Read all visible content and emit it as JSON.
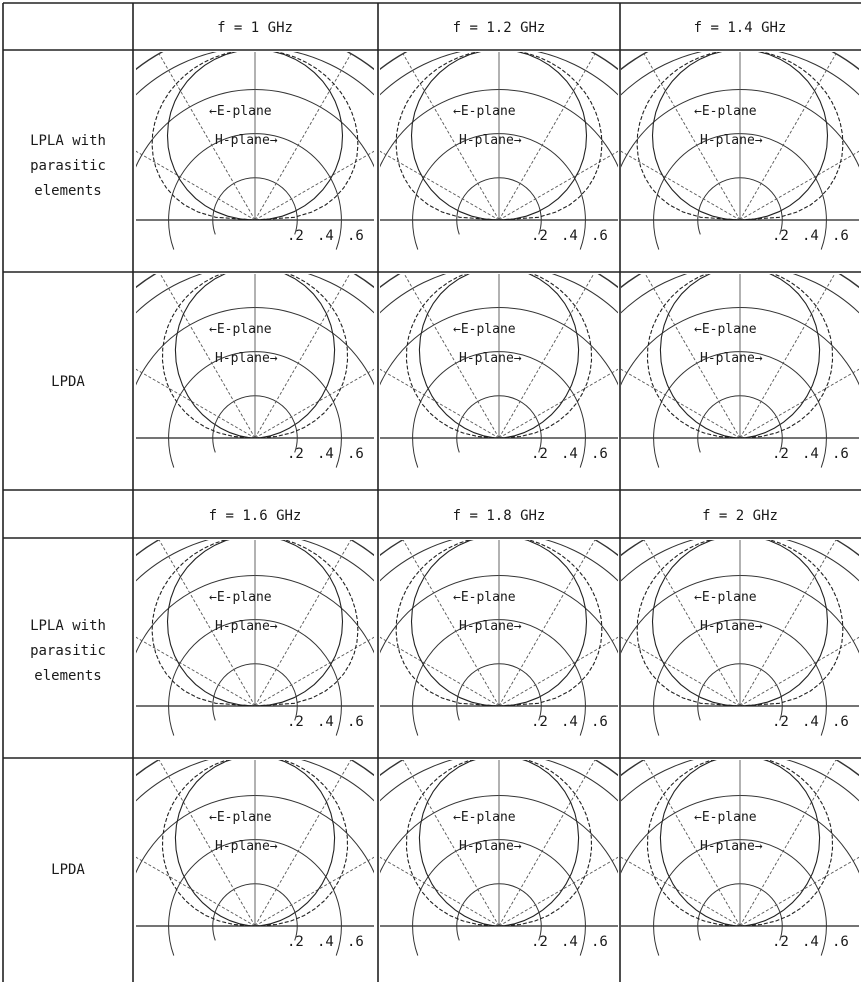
{
  "header_row_1": [
    "f = 1 GHz",
    "f = 1.2 GHz",
    "f = 1.4 GHz"
  ],
  "header_row_2": [
    "f = 1.6 GHz",
    "f = 1.8 GHz",
    "f = 2 GHz"
  ],
  "row_labels": {
    "lpla": [
      "LPLA with",
      "parasitic",
      "elements"
    ],
    "lpda": [
      "LPDA"
    ]
  },
  "plot_labels": {
    "e_plane": "E-plane",
    "h_plane": "H-plane"
  },
  "radial_ticks": [
    ".2",
    ".4",
    ".6"
  ],
  "chart_data": {
    "type": "polar",
    "description_of_grid": {
      "radial_ticks": [
        0.2,
        0.4,
        0.6
      ],
      "angular_span_deg": 180,
      "grid": true
    },
    "panels": [
      {
        "antenna": "LPLA with parasitic elements",
        "frequency_ghz": 1.0,
        "series": [
          {
            "name": "E-plane"
          },
          {
            "name": "H-plane"
          }
        ]
      },
      {
        "antenna": "LPLA with parasitic elements",
        "frequency_ghz": 1.2,
        "series": [
          {
            "name": "E-plane"
          },
          {
            "name": "H-plane"
          }
        ]
      },
      {
        "antenna": "LPLA with parasitic elements",
        "frequency_ghz": 1.4,
        "series": [
          {
            "name": "E-plane"
          },
          {
            "name": "H-plane"
          }
        ]
      },
      {
        "antenna": "LPDA",
        "frequency_ghz": 1.0,
        "series": [
          {
            "name": "E-plane"
          },
          {
            "name": "H-plane"
          }
        ]
      },
      {
        "antenna": "LPDA",
        "frequency_ghz": 1.2,
        "series": [
          {
            "name": "E-plane"
          },
          {
            "name": "H-plane"
          }
        ]
      },
      {
        "antenna": "LPDA",
        "frequency_ghz": 1.4,
        "series": [
          {
            "name": "E-plane"
          },
          {
            "name": "H-plane"
          }
        ]
      },
      {
        "antenna": "LPLA with parasitic elements",
        "frequency_ghz": 1.6,
        "series": [
          {
            "name": "E-plane"
          },
          {
            "name": "H-plane"
          }
        ]
      },
      {
        "antenna": "LPLA with parasitic elements",
        "frequency_ghz": 1.8,
        "series": [
          {
            "name": "E-plane"
          },
          {
            "name": "H-plane"
          }
        ]
      },
      {
        "antenna": "LPLA with parasitic elements",
        "frequency_ghz": 2.0,
        "series": [
          {
            "name": "E-plane"
          },
          {
            "name": "H-plane"
          }
        ]
      },
      {
        "antenna": "LPDA",
        "frequency_ghz": 1.6,
        "series": [
          {
            "name": "E-plane"
          },
          {
            "name": "H-plane"
          }
        ]
      },
      {
        "antenna": "LPDA",
        "frequency_ghz": 1.8,
        "series": [
          {
            "name": "E-plane"
          },
          {
            "name": "H-plane"
          }
        ]
      },
      {
        "antenna": "LPDA",
        "frequency_ghz": 2.0,
        "series": [
          {
            "name": "E-plane"
          },
          {
            "name": "H-plane"
          }
        ]
      }
    ]
  }
}
